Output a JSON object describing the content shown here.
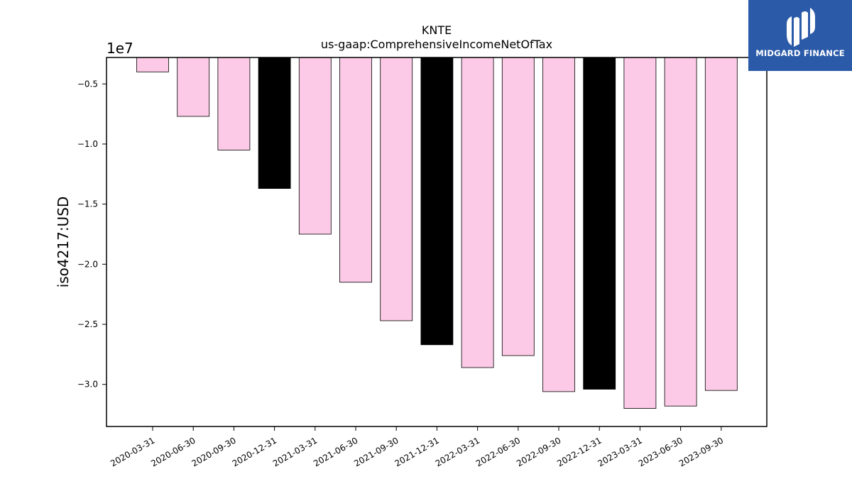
{
  "brand": {
    "name": "MIDGARD FINANCE",
    "background_color": "#2b5aa8",
    "logo_icon": "midgard-logo-icon"
  },
  "chart_data": {
    "type": "bar",
    "title": "KNTE",
    "subtitle": "us-gaap:ComprehensiveIncomeNetOfTax",
    "xlabel": "",
    "ylabel": "iso4217:USD",
    "y_offset_label": "1e7",
    "categories": [
      "2020-03-31",
      "2020-06-30",
      "2020-09-30",
      "2020-12-31",
      "2021-03-31",
      "2021-06-30",
      "2021-09-30",
      "2021-12-31",
      "2022-03-31",
      "2022-06-30",
      "2022-09-30",
      "2022-12-31",
      "2023-03-31",
      "2023-06-30",
      "2023-09-30"
    ],
    "values": [
      -4000000,
      -7700000,
      -10500000,
      -13700000,
      -17500000,
      -21500000,
      -24700000,
      -26700000,
      -28600000,
      -27600000,
      -30600000,
      -30400000,
      -32000000,
      -31800000,
      -30500000
    ],
    "highlight_color": "#000000",
    "bar_color": "#fccae6",
    "highlighted_categories": [
      "2020-12-31",
      "2021-12-31",
      "2022-12-31"
    ],
    "ylim": [
      -33500000,
      -2800000
    ],
    "yticks": [
      -5000000,
      -10000000,
      -15000000,
      -20000000,
      -25000000,
      -30000000
    ],
    "ytick_labels": [
      "−0.5",
      "−1.0",
      "−1.5",
      "−2.0",
      "−2.5",
      "−3.0"
    ],
    "grid": false,
    "legend": "none"
  }
}
